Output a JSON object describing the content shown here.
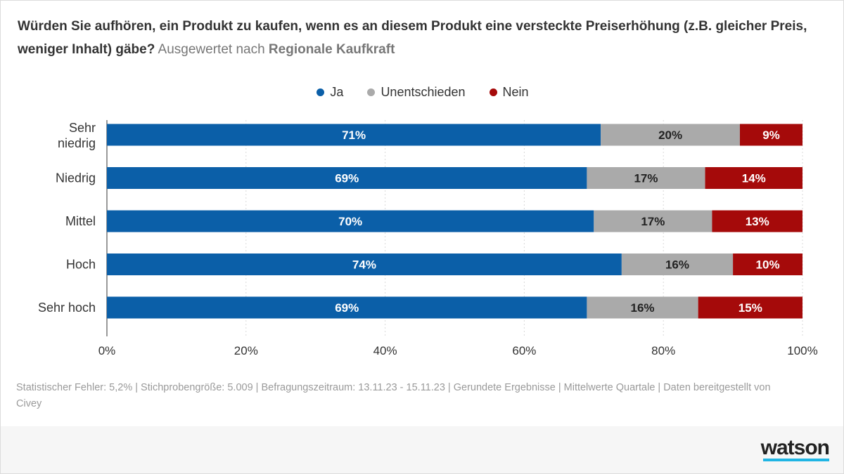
{
  "title": {
    "question": "Würden Sie aufhören, ein Produkt zu kaufen, wenn es an diesem Produkt eine versteckte Preiserhöhung (z.B. gleicher Preis, weniger Inhalt) gäbe?",
    "subtitle_prefix": "Ausgewertet nach",
    "subtitle_bold": "Regionale Kaufkraft"
  },
  "legend": [
    {
      "label": "Ja",
      "color": "#0b5fa8"
    },
    {
      "label": "Unentschieden",
      "color": "#aaaaaa"
    },
    {
      "label": "Nein",
      "color": "#a50a0a"
    }
  ],
  "chart_data": {
    "type": "bar",
    "orientation": "horizontal",
    "stacked": true,
    "categories": [
      "Sehr niedrig",
      "Niedrig",
      "Mittel",
      "Hoch",
      "Sehr hoch"
    ],
    "series": [
      {
        "name": "Ja",
        "values": [
          71,
          69,
          70,
          74,
          69
        ],
        "color": "#0b5fa8"
      },
      {
        "name": "Unentschieden",
        "values": [
          20,
          17,
          17,
          16,
          16
        ],
        "color": "#aaaaaa"
      },
      {
        "name": "Nein",
        "values": [
          9,
          14,
          13,
          10,
          15
        ],
        "color": "#a50a0a"
      }
    ],
    "xlim": [
      0,
      100
    ],
    "xticks": [
      "0%",
      "20%",
      "40%",
      "60%",
      "80%",
      "100%"
    ],
    "grid": true,
    "legend_position": "top-center"
  },
  "footnote": "Statistischer Fehler: 5,2% | Stichprobengröße: 5.009 | Befragungszeitraum: 13.11.23 - 15.11.23 | Gerundete Ergebnisse | Mittelwerte Quartale | Daten bereitgestellt von Civey",
  "brand": {
    "logo_text": "watson",
    "accent_color": "#20b5e4"
  }
}
